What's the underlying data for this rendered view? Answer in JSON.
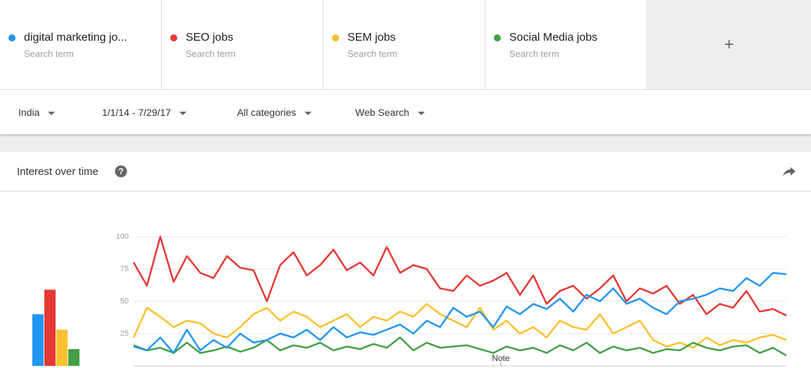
{
  "terms": [
    {
      "name": "digital marketing jo...",
      "subtitle": "Search term"
    },
    {
      "name": "SEO jobs",
      "subtitle": "Search term"
    },
    {
      "name": "SEM jobs",
      "subtitle": "Search term"
    },
    {
      "name": "Social Media jobs",
      "subtitle": "Search term"
    }
  ],
  "add_button": "+",
  "filters": [
    "India",
    "1/1/14 - 7/29/17",
    "All categories",
    "Web Search"
  ],
  "section_title": "Interest over time",
  "chart_data": [
    {
      "type": "bar",
      "values": [
        40,
        59,
        28,
        13
      ],
      "colors": [
        "#2196f3",
        "#e53935",
        "#fbc02d",
        "#43a047"
      ],
      "ylim": [
        0,
        100
      ]
    },
    {
      "type": "line",
      "ylim": [
        0,
        100
      ],
      "yticks": [
        25,
        50,
        75,
        100
      ],
      "grid": true,
      "annotation": "Note",
      "series": [
        {
          "name": "digital marketing jo...",
          "color": "#2196f3",
          "values": [
            15,
            12,
            22,
            10,
            28,
            12,
            20,
            14,
            25,
            18,
            20,
            25,
            22,
            28,
            20,
            30,
            22,
            26,
            24,
            28,
            32,
            25,
            35,
            30,
            45,
            38,
            42,
            30,
            46,
            40,
            48,
            44,
            52,
            42,
            55,
            50,
            60,
            48,
            52,
            45,
            40,
            50,
            52,
            55,
            60,
            58,
            68,
            62,
            72,
            71
          ]
        },
        {
          "name": "SEO jobs",
          "color": "#e53935",
          "values": [
            80,
            62,
            100,
            65,
            85,
            72,
            68,
            85,
            76,
            74,
            50,
            78,
            88,
            70,
            78,
            90,
            74,
            80,
            70,
            92,
            72,
            78,
            75,
            60,
            58,
            70,
            62,
            66,
            72,
            55,
            70,
            48,
            58,
            62,
            52,
            60,
            70,
            50,
            60,
            56,
            62,
            48,
            55,
            40,
            48,
            45,
            58,
            42,
            44,
            39
          ]
        },
        {
          "name": "SEM jobs",
          "color": "#fbc02d",
          "values": [
            22,
            45,
            38,
            30,
            35,
            33,
            25,
            22,
            30,
            40,
            45,
            35,
            42,
            38,
            30,
            35,
            40,
            30,
            38,
            35,
            42,
            38,
            48,
            40,
            35,
            30,
            45,
            28,
            35,
            25,
            30,
            22,
            35,
            30,
            28,
            40,
            25,
            30,
            35,
            20,
            15,
            18,
            14,
            22,
            16,
            20,
            18,
            22,
            24,
            20
          ]
        },
        {
          "name": "Social Media jobs",
          "color": "#43a047",
          "values": [
            16,
            12,
            14,
            10,
            18,
            10,
            12,
            15,
            11,
            14,
            20,
            12,
            16,
            14,
            18,
            12,
            15,
            13,
            17,
            14,
            22,
            12,
            18,
            14,
            15,
            16,
            13,
            10,
            15,
            12,
            14,
            10,
            16,
            12,
            18,
            10,
            15,
            12,
            14,
            10,
            13,
            12,
            18,
            14,
            12,
            15,
            16,
            10,
            14,
            8
          ]
        }
      ]
    }
  ]
}
